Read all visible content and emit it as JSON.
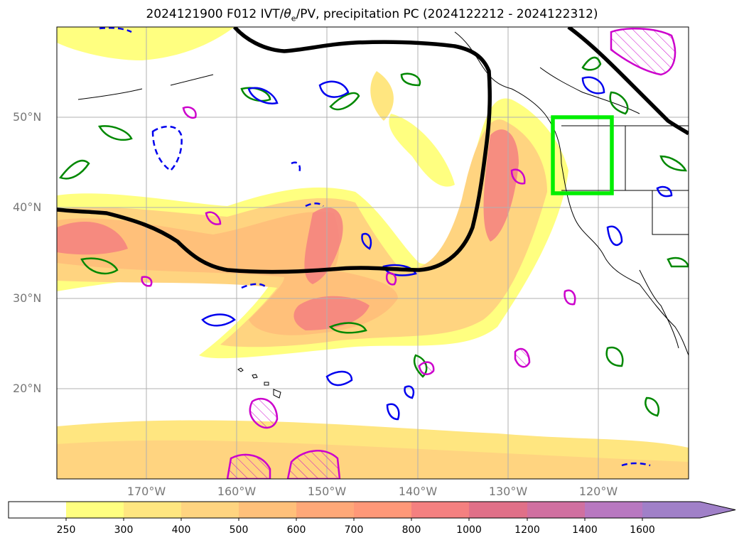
{
  "title": {
    "prefix": "2024121900 F012 IVT/",
    "theta": "θ",
    "theta_sub": "e",
    "suffix": "/PV, precipitation PC (2024122212 - 2024122312)"
  },
  "axes": {
    "lat_labels": [
      "50°N",
      "40°N",
      "30°N",
      "20°N"
    ],
    "lon_labels": [
      "170°W",
      "160°W",
      "150°W",
      "140°W",
      "130°W",
      "120°W"
    ]
  },
  "colorbar": {
    "ticks": [
      "250",
      "300",
      "400",
      "500",
      "600",
      "700",
      "800",
      "1000",
      "1200",
      "1400",
      "1600"
    ],
    "colors": [
      "#ffffff",
      "#ffff80",
      "#ffe680",
      "#ffd480",
      "#ffc07a",
      "#ffa878",
      "#ff9878",
      "#f48080",
      "#e07088",
      "#d070a0",
      "#b878c0",
      "#a080c8"
    ]
  },
  "overlays": {
    "highlight_box_color": "#00ee00",
    "thick_contour_color": "#000000",
    "contour_colors": [
      "#0000ee",
      "#00aa00",
      "#cc00cc"
    ]
  }
}
